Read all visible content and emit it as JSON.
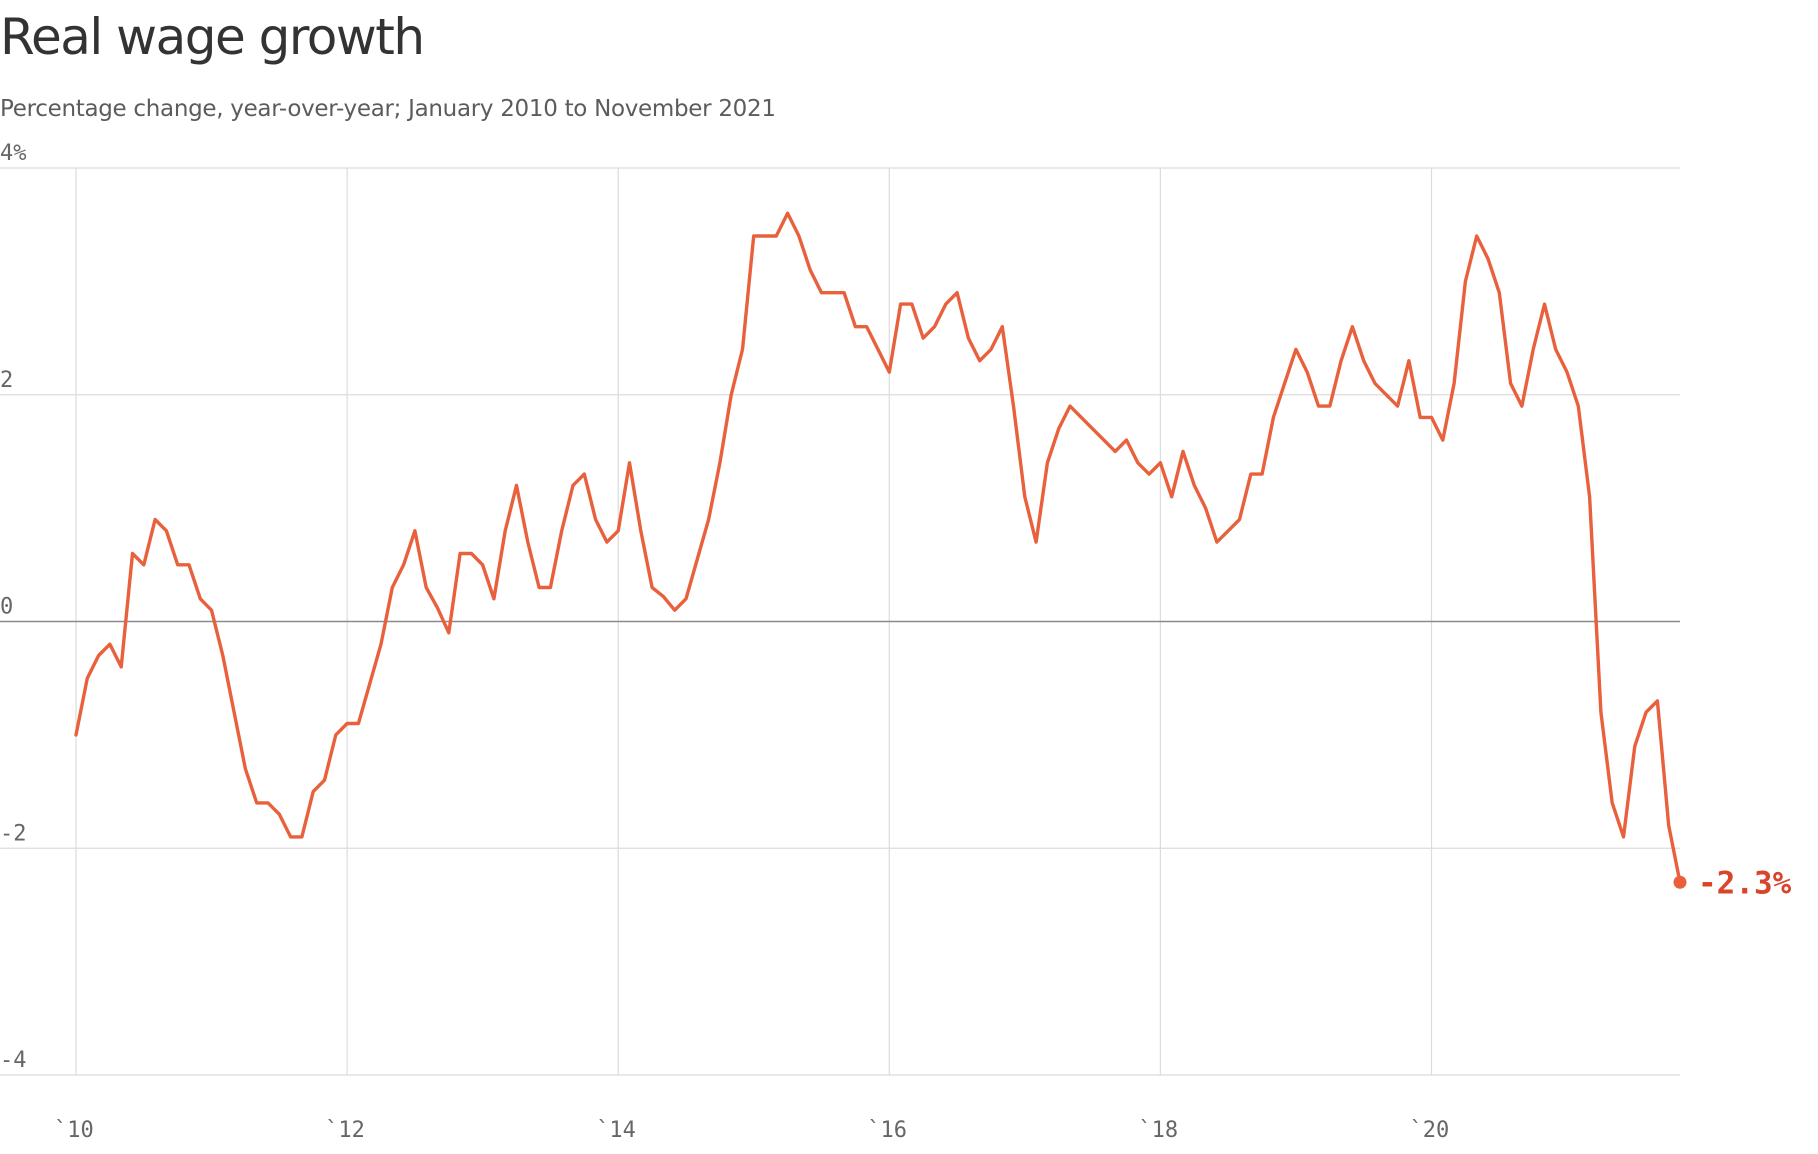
{
  "chart_data": {
    "type": "line",
    "title": "Real wage growth",
    "subtitle": "Percentage change, year-over-year; January 2010 to November 2021",
    "start": "2010-01",
    "end": "2021-11",
    "ylim": [
      -4,
      4
    ],
    "y_ticks": [
      {
        "value": 4,
        "label": "4%"
      },
      {
        "value": 2,
        "label": "2"
      },
      {
        "value": 0,
        "label": "0"
      },
      {
        "value": -2,
        "label": "-2"
      },
      {
        "value": -4,
        "label": "-4"
      }
    ],
    "x_ticks": [
      {
        "date": "2010-01",
        "label": "`10"
      },
      {
        "date": "2012-01",
        "label": "`12"
      },
      {
        "date": "2014-01",
        "label": "`14"
      },
      {
        "date": "2016-01",
        "label": "`16"
      },
      {
        "date": "2018-01",
        "label": "`18"
      },
      {
        "date": "2020-01",
        "label": "`20"
      }
    ],
    "grid": true,
    "line_color": "#e8603c",
    "label_color": "#d9442a",
    "end_label": "-2.3%",
    "series": [
      {
        "values": [
          -1.0,
          -0.5,
          -0.3,
          -0.2,
          -0.4,
          0.6,
          0.5,
          0.9,
          0.8,
          0.5,
          0.5,
          0.2,
          0.1,
          -0.3,
          -0.8,
          -1.3,
          -1.6,
          -1.6,
          -1.7,
          -1.9,
          -1.9,
          -1.5,
          -1.4,
          -1.0,
          -0.9,
          -0.9,
          -0.55,
          -0.2,
          0.3,
          0.5,
          0.8,
          0.3,
          0.12,
          -0.1,
          0.6,
          0.6,
          0.5,
          0.2,
          0.8,
          1.2,
          0.7,
          0.3,
          0.3,
          0.8,
          1.2,
          1.3,
          0.9,
          0.7,
          0.8,
          1.4,
          0.8,
          0.3,
          0.22,
          0.1,
          0.2,
          0.55,
          0.9,
          1.4,
          2.0,
          2.4,
          3.4,
          3.4,
          3.4,
          3.6,
          3.4,
          3.1,
          2.9,
          2.9,
          2.9,
          2.6,
          2.6,
          2.4,
          2.2,
          2.8,
          2.8,
          2.5,
          2.6,
          2.8,
          2.9,
          2.5,
          2.3,
          2.4,
          2.6,
          1.9,
          1.1,
          0.7,
          1.4,
          1.7,
          1.9,
          1.8,
          1.7,
          1.6,
          1.5,
          1.6,
          1.4,
          1.3,
          1.4,
          1.1,
          1.5,
          1.2,
          1.0,
          0.7,
          0.8,
          0.9,
          1.3,
          1.3,
          1.8,
          2.1,
          2.4,
          2.2,
          1.9,
          1.9,
          2.3,
          2.6,
          2.3,
          2.1,
          2.0,
          1.9,
          2.3,
          1.8,
          1.8,
          1.6,
          2.1,
          3.0,
          3.4,
          3.2,
          2.9,
          2.1,
          1.9,
          2.4,
          2.8,
          2.4,
          2.2,
          1.9,
          1.1,
          -0.8,
          -1.6,
          -1.9,
          -1.1,
          -0.8,
          -0.7,
          -1.8,
          -2.3
        ]
      }
    ]
  }
}
